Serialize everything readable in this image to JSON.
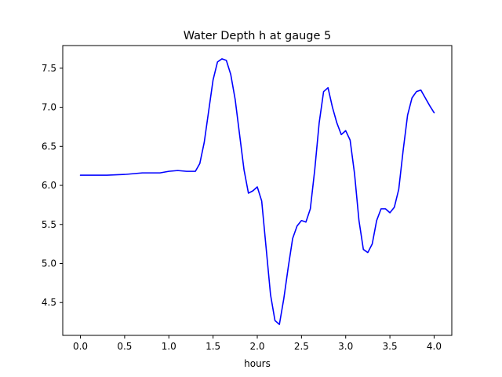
{
  "chart_data": {
    "type": "line",
    "title": "Water Depth h at gauge 5",
    "xlabel": "hours",
    "ylabel": "",
    "xlim": [
      -0.2,
      4.2
    ],
    "ylim": [
      4.08,
      7.79
    ],
    "xticks": [
      0.0,
      0.5,
      1.0,
      1.5,
      2.0,
      2.5,
      3.0,
      3.5,
      4.0
    ],
    "xtick_labels": [
      "0.0",
      "0.5",
      "1.0",
      "1.5",
      "2.0",
      "2.5",
      "3.0",
      "3.5",
      "4.0"
    ],
    "yticks": [
      4.5,
      5.0,
      5.5,
      6.0,
      6.5,
      7.0,
      7.5
    ],
    "ytick_labels": [
      "4.5",
      "5.0",
      "5.5",
      "6.0",
      "6.5",
      "7.0",
      "7.5"
    ],
    "grid": false,
    "legend": false,
    "series": [
      {
        "color": "#0000ff",
        "x": [
          0.0,
          0.3,
          0.5,
          0.7,
          0.9,
          1.0,
          1.1,
          1.2,
          1.3,
          1.35,
          1.4,
          1.45,
          1.5,
          1.55,
          1.6,
          1.65,
          1.7,
          1.75,
          1.8,
          1.85,
          1.9,
          1.95,
          2.0,
          2.05,
          2.1,
          2.15,
          2.2,
          2.25,
          2.3,
          2.35,
          2.4,
          2.45,
          2.5,
          2.55,
          2.6,
          2.65,
          2.7,
          2.75,
          2.8,
          2.85,
          2.9,
          2.95,
          3.0,
          3.05,
          3.1,
          3.15,
          3.2,
          3.25,
          3.3,
          3.35,
          3.4,
          3.45,
          3.5,
          3.55,
          3.6,
          3.65,
          3.7,
          3.75,
          3.8,
          3.85,
          3.9,
          3.95,
          4.0
        ],
        "y": [
          6.13,
          6.13,
          6.14,
          6.16,
          6.16,
          6.18,
          6.19,
          6.18,
          6.18,
          6.28,
          6.55,
          6.95,
          7.35,
          7.58,
          7.62,
          7.6,
          7.42,
          7.1,
          6.65,
          6.2,
          5.9,
          5.93,
          5.98,
          5.8,
          5.2,
          4.6,
          4.27,
          4.22,
          4.55,
          4.95,
          5.32,
          5.48,
          5.55,
          5.53,
          5.7,
          6.2,
          6.8,
          7.2,
          7.25,
          7.0,
          6.8,
          6.65,
          6.7,
          6.58,
          6.15,
          5.55,
          5.18,
          5.14,
          5.25,
          5.55,
          5.7,
          5.7,
          5.65,
          5.72,
          5.95,
          6.45,
          6.9,
          7.12,
          7.2,
          7.22,
          7.12,
          7.02,
          6.93
        ]
      }
    ]
  }
}
